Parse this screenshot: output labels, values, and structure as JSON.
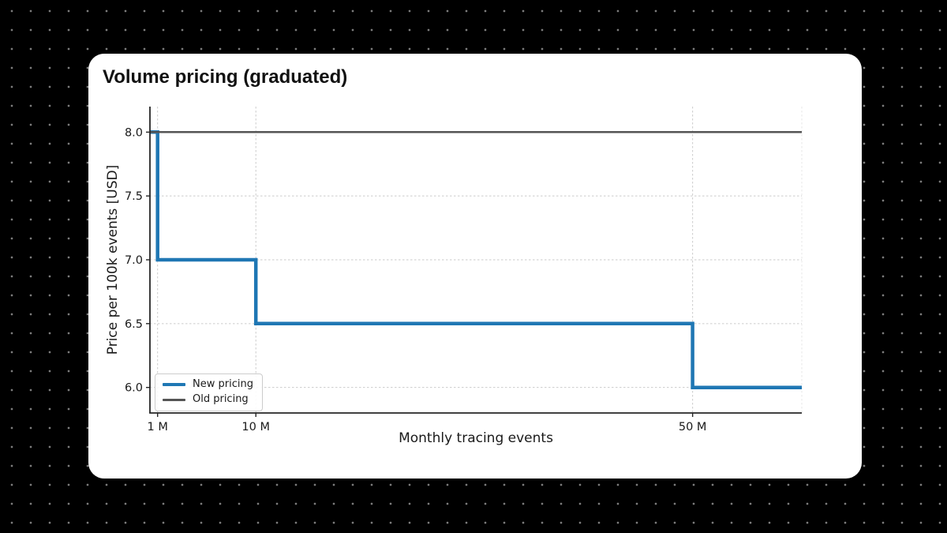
{
  "colors": {
    "page_background": "#000000",
    "page_dot": "#7d7d7d",
    "card_background": "#ffffff",
    "axis_spine": "#262626",
    "grid_line": "#cbcbcb",
    "grid_edge_line": "#e7e7e7",
    "tick_text": "#1a1a1a"
  },
  "card": {
    "title": "Volume pricing (graduated)"
  },
  "chart_data": {
    "type": "line",
    "subtype": "step",
    "title": "Volume pricing (graduated)",
    "xlabel": "Monthly tracing events",
    "ylabel": "Price per 100k events [USD]",
    "x_unit": "millions of monthly tracing events",
    "xlim": [
      0.3,
      60
    ],
    "ylim": [
      5.8,
      8.2
    ],
    "xticks": {
      "values": [
        1,
        10,
        50
      ],
      "labels": [
        "1 M",
        "10 M",
        "50 M"
      ]
    },
    "yticks": {
      "values": [
        6.0,
        6.5,
        7.0,
        7.5,
        8.0
      ],
      "labels": [
        "6.0",
        "6.5",
        "7.0",
        "7.5",
        "8.0"
      ]
    },
    "grid": true,
    "grid_style": "dashed",
    "legend_position": "lower left",
    "series": [
      {
        "name": "New pricing",
        "color": "#1f77b4",
        "line_width": 4.5,
        "step": "post",
        "points": [
          [
            0.3,
            8.0
          ],
          [
            1,
            7.0
          ],
          [
            10,
            6.5
          ],
          [
            50,
            6.0
          ],
          [
            60,
            6.0
          ]
        ],
        "tiers": [
          {
            "range_millions": "0.3-1",
            "price_per_100k_usd": 8.0
          },
          {
            "range_millions": "1-10",
            "price_per_100k_usd": 7.0
          },
          {
            "range_millions": "10-50",
            "price_per_100k_usd": 6.5
          },
          {
            "range_millions": "50+",
            "price_per_100k_usd": 6.0
          }
        ]
      },
      {
        "name": "Old pricing",
        "color": "#555555",
        "line_width": 2.5,
        "step": "none",
        "points": [
          [
            0.3,
            8.0
          ],
          [
            60,
            8.0
          ]
        ]
      }
    ]
  }
}
